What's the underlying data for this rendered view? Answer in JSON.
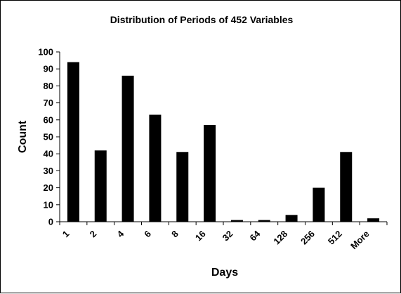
{
  "chart_data": {
    "type": "bar",
    "title": "Distribution of Periods of 452 Variables",
    "xlabel": "Days",
    "ylabel": "Count",
    "categories": [
      "1",
      "2",
      "4",
      "6",
      "8",
      "16",
      "32",
      "64",
      "128",
      "256",
      "512",
      "More"
    ],
    "values": [
      94,
      42,
      86,
      63,
      41,
      57,
      1,
      1,
      4,
      20,
      41,
      2
    ],
    "ylim": [
      0,
      100
    ],
    "yticks": [
      0,
      10,
      20,
      30,
      40,
      50,
      60,
      70,
      80,
      90,
      100
    ],
    "grid": false,
    "legend": "none",
    "bar_color": "#000000"
  }
}
